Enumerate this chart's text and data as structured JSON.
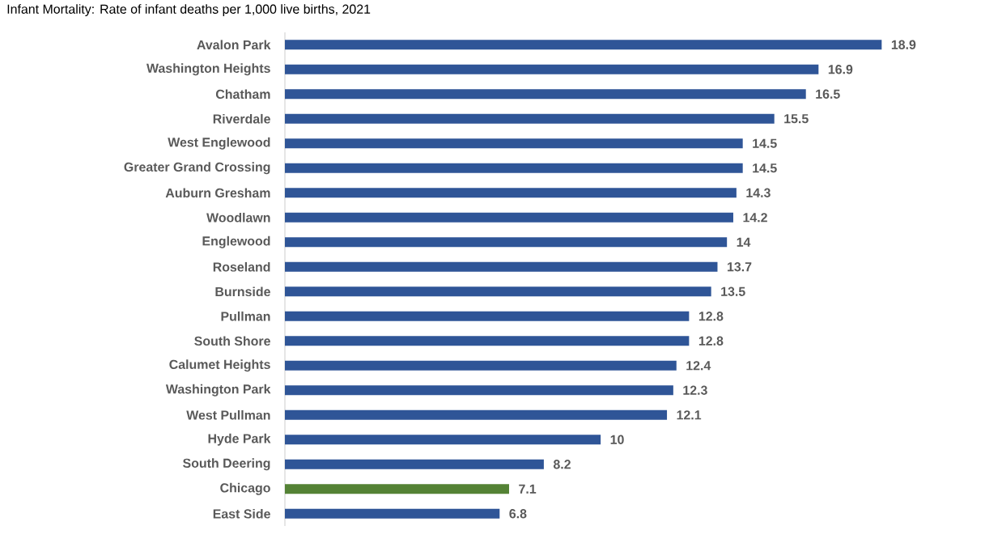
{
  "chart_data": {
    "type": "bar",
    "orientation": "horizontal",
    "title": "Infant Mortality: Rate of infant deaths per 1,000 live births, 2021",
    "categories": [
      "Avalon Park",
      "Washington Heights",
      "Chatham",
      "Riverdale",
      "West Englewood",
      "Greater Grand Crossing",
      "Auburn Gresham",
      "Woodlawn",
      "Englewood",
      "Roseland",
      "Burnside",
      "Pullman",
      "South Shore",
      "Calumet Heights",
      "Washington Park",
      "West Pullman",
      "Hyde Park",
      "South Deering",
      "Chicago",
      "East Side"
    ],
    "values": [
      18.9,
      16.9,
      16.5,
      15.5,
      14.5,
      14.5,
      14.3,
      14.2,
      14,
      13.7,
      13.5,
      12.8,
      12.8,
      12.4,
      12.3,
      12.1,
      10,
      8.2,
      7.1,
      6.8
    ],
    "colors": [
      "#2f5597",
      "#2f5597",
      "#2f5597",
      "#2f5597",
      "#2f5597",
      "#2f5597",
      "#2f5597",
      "#2f5597",
      "#2f5597",
      "#2f5597",
      "#2f5597",
      "#2f5597",
      "#2f5597",
      "#2f5597",
      "#2f5597",
      "#2f5597",
      "#2f5597",
      "#2f5597",
      "#548235",
      "#2f5597"
    ],
    "data_labels": true
  }
}
